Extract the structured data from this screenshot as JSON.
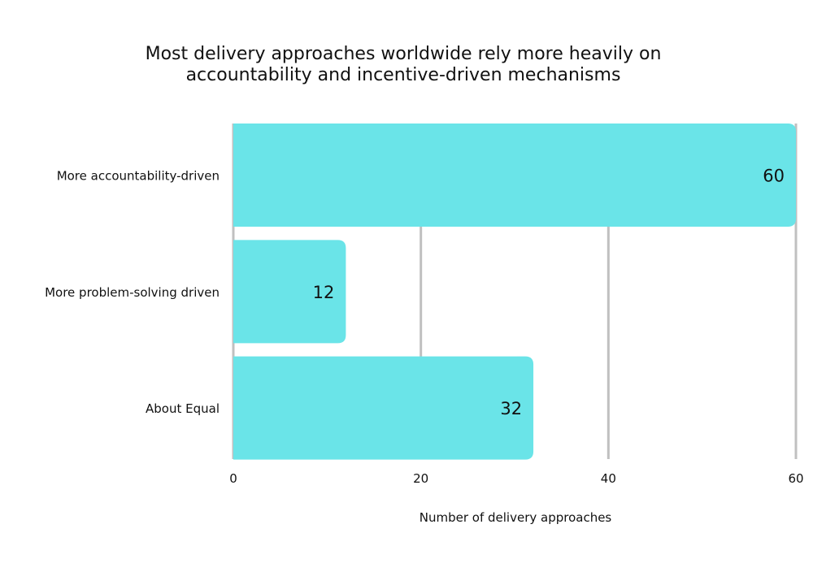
{
  "chart_data": {
    "type": "bar",
    "orientation": "horizontal",
    "title": [
      "Most delivery approaches worldwide rely more heavily on",
      "accountability and incentive-driven mechanisms"
    ],
    "categories": [
      "More accountability-driven",
      "More problem-solving driven",
      "About Equal"
    ],
    "values": [
      60,
      12,
      32
    ],
    "xlabel": "Number of delivery approaches",
    "ylabel": "",
    "xlim": [
      0,
      60
    ],
    "xticks": [
      0,
      20,
      40,
      60
    ],
    "grid": true,
    "data_labels": true,
    "colors": {
      "bar": "#6ae4e8",
      "grid": "#c0c0c0",
      "text": "#111111"
    }
  }
}
